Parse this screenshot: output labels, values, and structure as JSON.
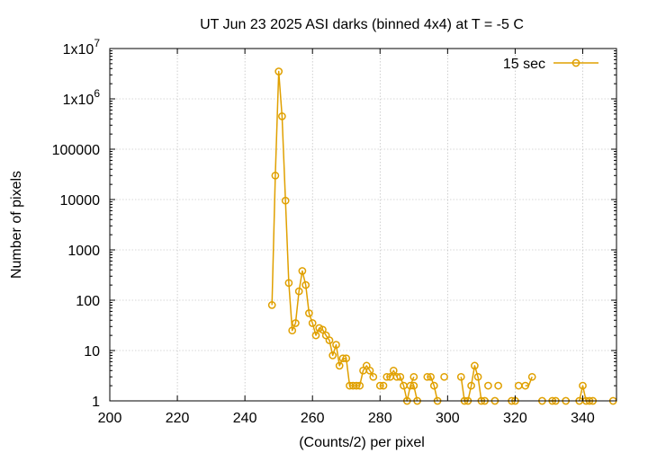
{
  "chart_data": {
    "type": "line",
    "title": "UT Jun 23 2025 ASI darks (binned 4x4) at T = -5 C",
    "xlabel": "(Counts/2) per pixel",
    "ylabel": "Number of pixels",
    "xlim": [
      200,
      350
    ],
    "ylim": [
      1,
      10000000
    ],
    "yscale": "log",
    "grid": true,
    "legend_position": "top-right",
    "x_ticks": [
      200,
      220,
      240,
      260,
      280,
      300,
      320,
      340
    ],
    "x_tick_labels": [
      "200",
      "220",
      "240",
      "260",
      "280",
      "300",
      "320",
      "340"
    ],
    "y_ticks": [
      1,
      10,
      100,
      1000,
      10000,
      100000,
      1000000,
      10000000
    ],
    "y_tick_labels": [
      {
        "base": "1",
        "sup": ""
      },
      {
        "base": "10",
        "sup": ""
      },
      {
        "base": "100",
        "sup": ""
      },
      {
        "base": "1000",
        "sup": ""
      },
      {
        "base": "10000",
        "sup": ""
      },
      {
        "base": "100000",
        "sup": ""
      },
      {
        "base": "1x10",
        "sup": "6"
      },
      {
        "base": "1x10",
        "sup": "7"
      }
    ],
    "series": [
      {
        "name": "15 sec",
        "color": "#e0a000",
        "marker": "circle",
        "segments": [
          {
            "x": [
              248,
              249,
              250,
              251,
              252,
              253,
              254,
              255,
              256,
              257,
              258,
              259,
              260,
              261,
              262,
              263,
              264,
              265,
              266,
              267,
              268,
              269,
              270,
              271,
              272,
              273,
              274,
              275,
              276,
              277
            ],
            "y": [
              80,
              30000,
              3500000,
              450000,
              9500,
              220,
              25,
              35,
              150,
              380,
              200,
              55,
              35,
              20,
              28,
              26,
              20,
              16,
              8,
              13,
              5,
              7,
              7,
              2,
              2,
              2,
              2,
              4,
              5,
              4
            ]
          },
          {
            "x": [
              277,
              278
            ],
            "y": [
              4,
              3
            ]
          },
          {
            "x": [
              280,
              281
            ],
            "y": [
              2,
              2
            ]
          },
          {
            "x": [
              282,
              283,
              284,
              285
            ],
            "y": [
              3,
              3,
              4,
              3
            ]
          },
          {
            "x": [
              286,
              287,
              288,
              289,
              290
            ],
            "y": [
              3,
              2,
              1,
              2,
              3
            ]
          },
          {
            "x": [
              289,
              290,
              291
            ],
            "y": [
              2,
              2,
              1
            ]
          },
          {
            "x": [
              294,
              295,
              296,
              297
            ],
            "y": [
              3,
              3,
              2,
              1
            ]
          },
          {
            "x": [
              304,
              305,
              306,
              307,
              308,
              309,
              310,
              311
            ],
            "y": [
              3,
              1,
              1,
              2,
              5,
              3,
              1,
              1
            ]
          },
          {
            "x": [
              319,
              320
            ],
            "y": [
              1,
              1
            ]
          },
          {
            "x": [
              323,
              324,
              325
            ],
            "y": [
              2,
              2,
              3
            ]
          },
          {
            "x": [
              330,
              331,
              332
            ],
            "y": [
              1,
              1,
              1
            ]
          },
          {
            "x": [
              339,
              340,
              341,
              342,
              343
            ],
            "y": [
              1,
              2,
              1,
              1,
              1
            ]
          }
        ],
        "points": [
          [
            248,
            80
          ],
          [
            249,
            30000
          ],
          [
            250,
            3500000
          ],
          [
            251,
            450000
          ],
          [
            252,
            9500
          ],
          [
            253,
            220
          ],
          [
            254,
            25
          ],
          [
            255,
            35
          ],
          [
            256,
            150
          ],
          [
            257,
            380
          ],
          [
            258,
            200
          ],
          [
            259,
            55
          ],
          [
            260,
            35
          ],
          [
            261,
            20
          ],
          [
            262,
            28
          ],
          [
            263,
            26
          ],
          [
            264,
            20
          ],
          [
            265,
            16
          ],
          [
            266,
            8
          ],
          [
            267,
            13
          ],
          [
            268,
            5
          ],
          [
            269,
            7
          ],
          [
            270,
            7
          ],
          [
            271,
            2
          ],
          [
            272,
            2
          ],
          [
            273,
            2
          ],
          [
            274,
            2
          ],
          [
            275,
            4
          ],
          [
            276,
            5
          ],
          [
            277,
            4
          ],
          [
            278,
            3
          ],
          [
            280,
            2
          ],
          [
            281,
            2
          ],
          [
            282,
            3
          ],
          [
            283,
            3
          ],
          [
            284,
            4
          ],
          [
            285,
            3
          ],
          [
            286,
            3
          ],
          [
            287,
            2
          ],
          [
            288,
            1
          ],
          [
            289,
            2
          ],
          [
            290,
            3
          ],
          [
            290,
            2
          ],
          [
            291,
            1
          ],
          [
            294,
            3
          ],
          [
            295,
            3
          ],
          [
            296,
            2
          ],
          [
            297,
            1
          ],
          [
            299,
            3
          ],
          [
            304,
            3
          ],
          [
            305,
            1
          ],
          [
            306,
            1
          ],
          [
            307,
            2
          ],
          [
            308,
            5
          ],
          [
            309,
            3
          ],
          [
            310,
            1
          ],
          [
            311,
            1
          ],
          [
            312,
            2
          ],
          [
            314,
            1
          ],
          [
            315,
            2
          ],
          [
            319,
            1
          ],
          [
            320,
            1
          ],
          [
            321,
            2
          ],
          [
            323,
            2
          ],
          [
            325,
            3
          ],
          [
            328,
            1
          ],
          [
            331,
            1
          ],
          [
            332,
            1
          ],
          [
            335,
            1
          ],
          [
            339,
            1
          ],
          [
            340,
            2
          ],
          [
            341,
            1
          ],
          [
            342,
            1
          ],
          [
            343,
            1
          ],
          [
            349,
            1
          ]
        ]
      }
    ]
  }
}
